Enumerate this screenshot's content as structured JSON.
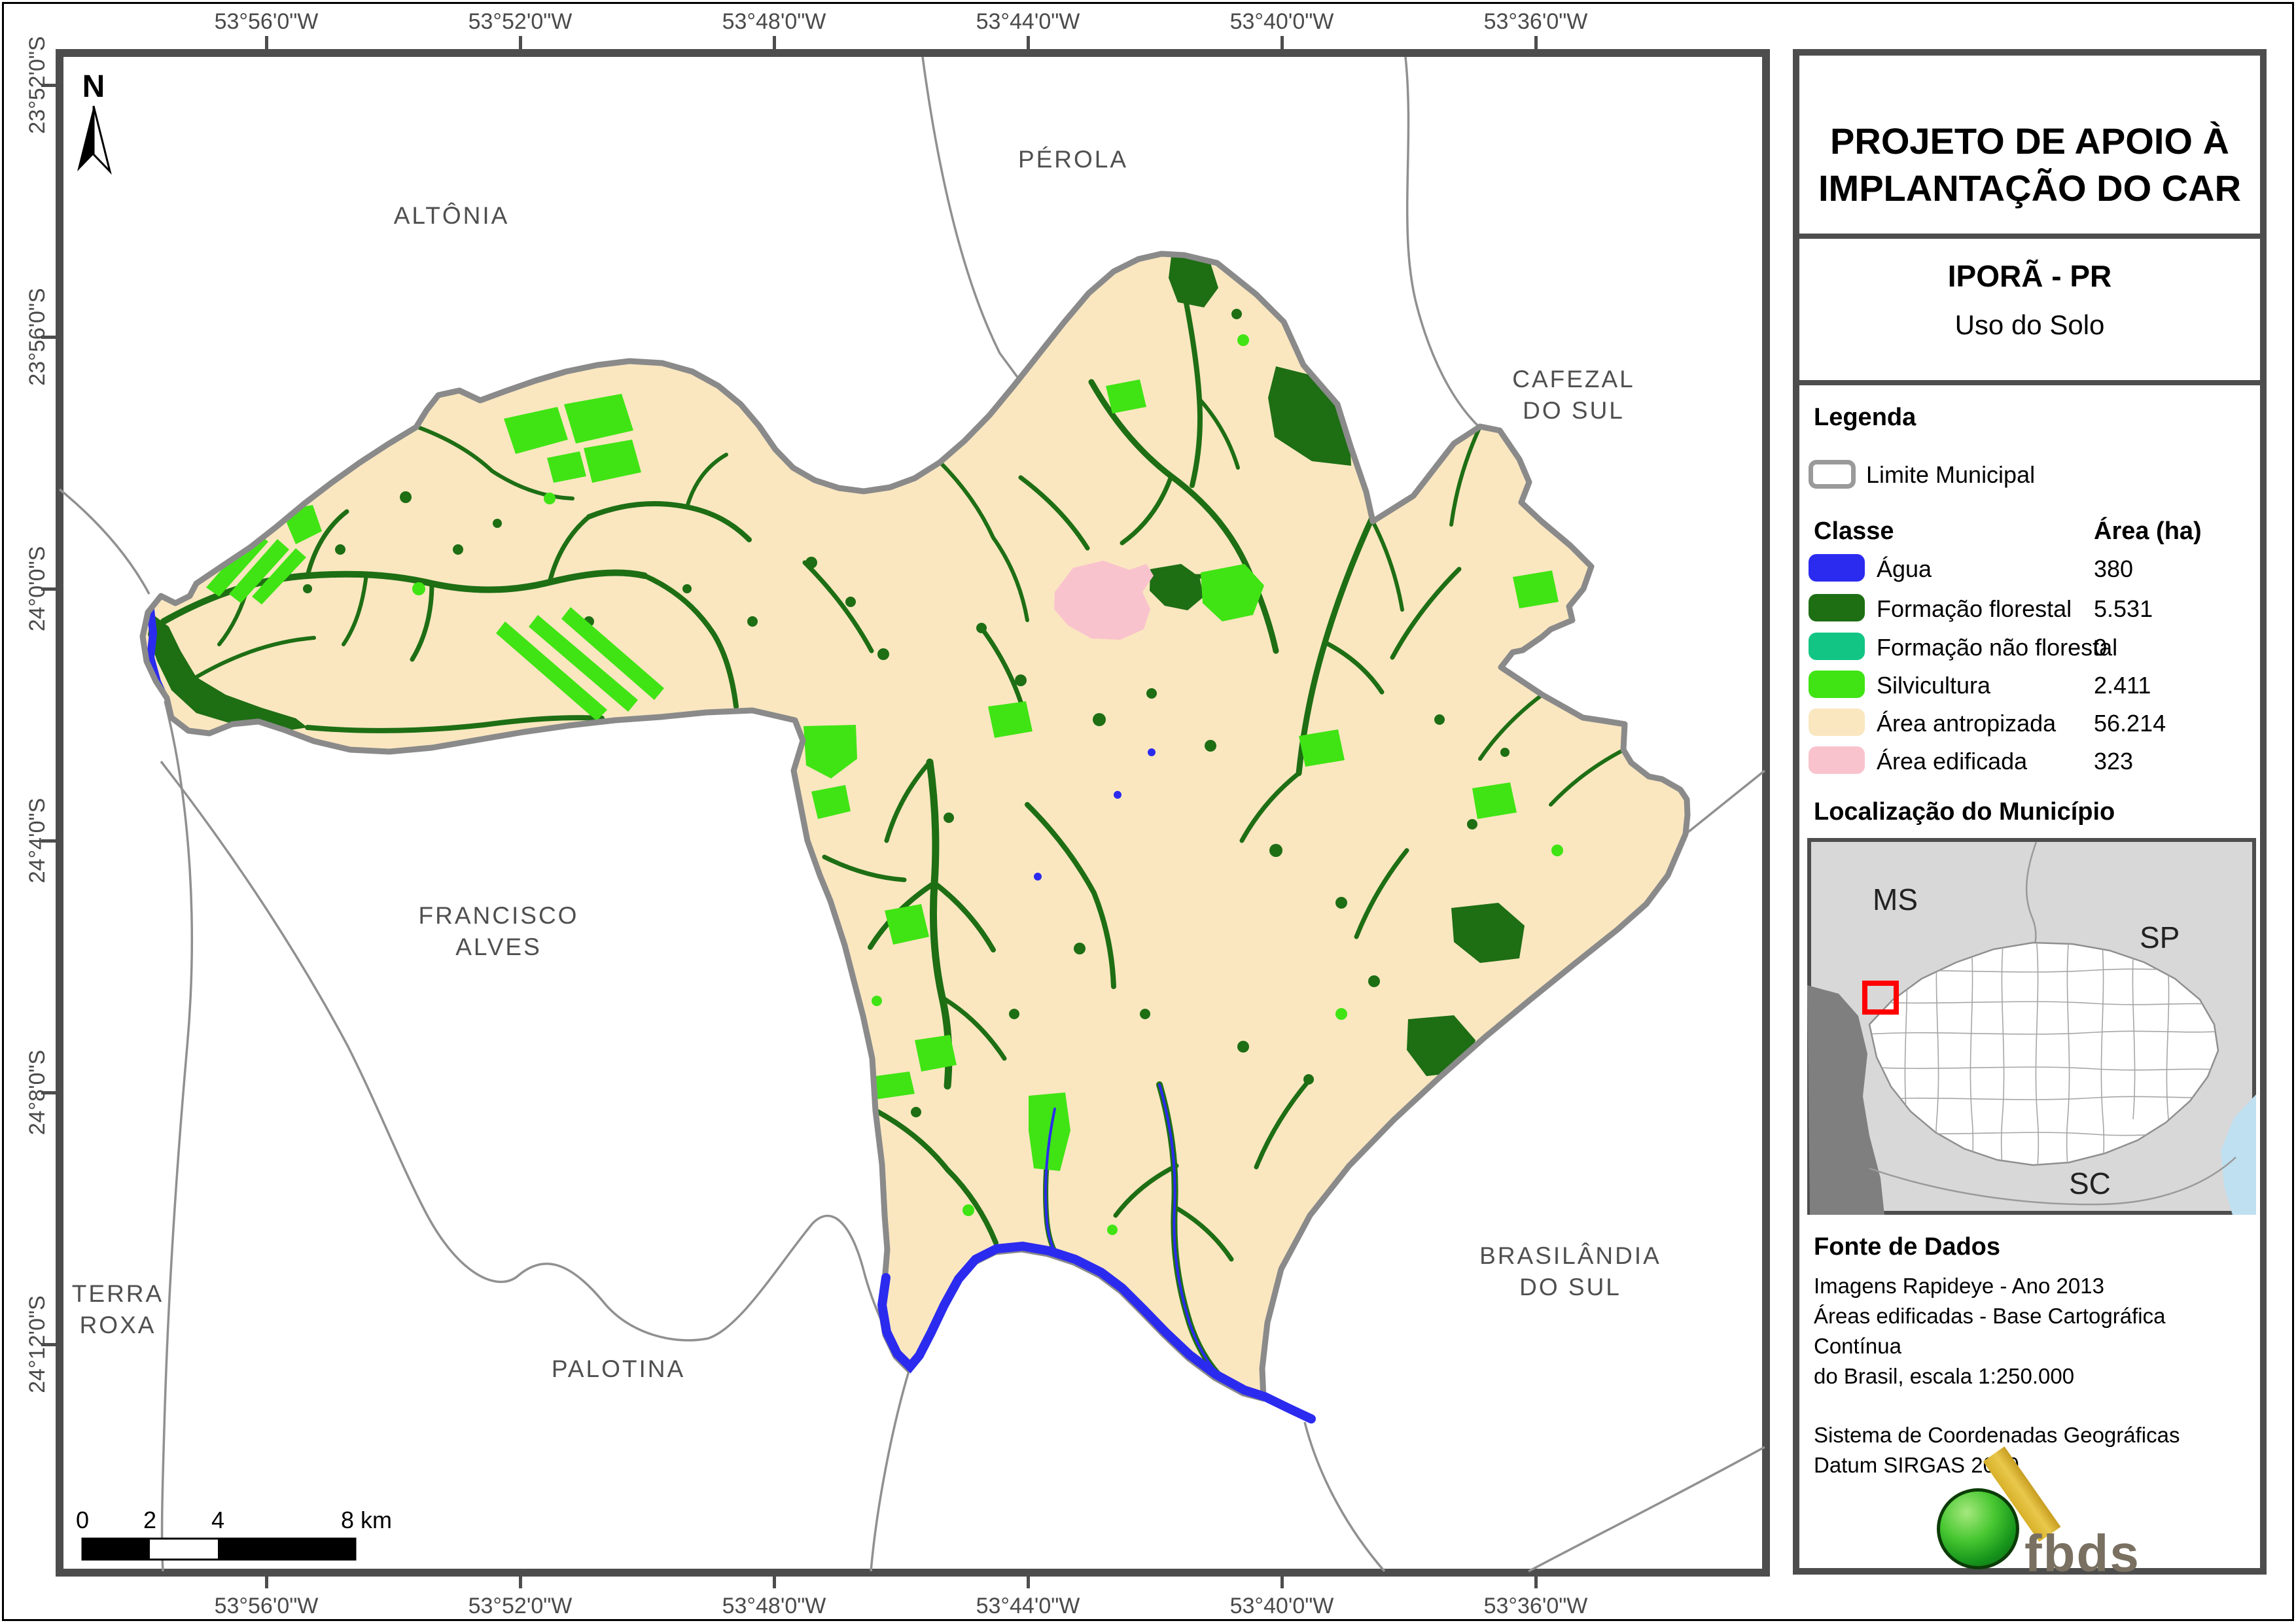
{
  "title_block": {
    "line1": "PROJETO DE APOIO À",
    "line2": "IMPLANTAÇÃO DO CAR",
    "municipality": "IPORÃ - PR",
    "map_theme": "Uso do Solo"
  },
  "legend": {
    "heading": "Legenda",
    "limite_label": "Limite Municipal",
    "col_class": "Classe",
    "col_area": "Área (ha)",
    "rows": [
      {
        "label": "Água",
        "value": "380",
        "color": "#2b2bef"
      },
      {
        "label": "Formação florestal",
        "value": "5.531",
        "color": "#1e6e14"
      },
      {
        "label": "Formação não florestal",
        "value": "0",
        "color": "#12c584"
      },
      {
        "label": "Silvicultura",
        "value": "2.411",
        "color": "#40e414"
      },
      {
        "label": "Área antropizada",
        "value": "56.214",
        "color": "#fae7c0"
      },
      {
        "label": "Área edificada",
        "value": "323",
        "color": "#f9c3cd"
      }
    ]
  },
  "localizacao": {
    "heading": "Localização do Município",
    "labels": {
      "ms": "MS",
      "sp": "SP",
      "sc": "SC"
    },
    "highlight_color": "#ff0000"
  },
  "fonte": {
    "heading": "Fonte de Dados",
    "line1": "Imagens Rapideye - Ano 2013",
    "line2": "Áreas edificadas - Base Cartográfica Contínua",
    "line3": "do Brasil, escala 1:250.000",
    "line4": "Sistema de Coordenadas Geográficas",
    "line5": "Datum SIRGAS 2000"
  },
  "logo": {
    "text": "fbds"
  },
  "map": {
    "north_label": "N",
    "place_labels": {
      "altonia": "ALTÔNIA",
      "perola": "PÉROLA",
      "cafezal1": "CAFEZAL",
      "cafezal2": "DO SUL",
      "francisco1": "FRANCISCO",
      "francisco2": "ALVES",
      "terra1": "TERRA",
      "terra2": "ROXA",
      "palotina": "PALOTINA",
      "brasilandia1": "BRASILÂNDIA",
      "brasilandia2": "DO SUL"
    },
    "coordinates": {
      "lon": [
        "53°56'0\"W",
        "53°52'0\"W",
        "53°48'0\"W",
        "53°44'0\"W",
        "53°40'0\"W",
        "53°36'0\"W"
      ],
      "lat": [
        "23°52'0\"S",
        "23°56'0\"S",
        "24°0'0\"S",
        "24°4'0\"S",
        "24°8'0\"S",
        "24°12'0\"S"
      ]
    },
    "scalebar": {
      "t0": "0",
      "t2": "2",
      "t4": "4",
      "t8": "8 km"
    },
    "colors": {
      "agua": "#2b2bef",
      "florestal": "#1e6e14",
      "nao_florestal": "#12c584",
      "silvicultura": "#40e414",
      "antropizada": "#fae7c0",
      "edificada": "#f9c3cd",
      "limite": "#8a8a8a",
      "vizinho": "#909090"
    }
  }
}
